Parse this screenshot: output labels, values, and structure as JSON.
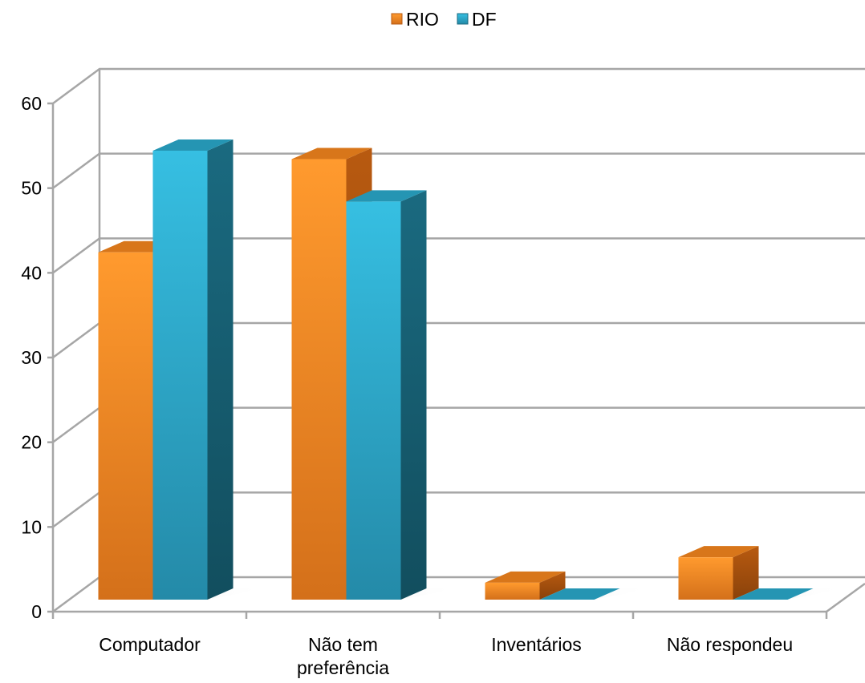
{
  "chart_data": {
    "type": "bar",
    "title": "",
    "xlabel": "",
    "ylabel": "",
    "categories": [
      "Computador",
      "Não tem preferência",
      "Inventários",
      "Não respondeu"
    ],
    "category_lines": [
      [
        "Computador"
      ],
      [
        "Não tem",
        "preferência"
      ],
      [
        "Inventários"
      ],
      [
        "Não respondeu"
      ]
    ],
    "series": [
      {
        "name": "RIO",
        "values": [
          41,
          52,
          2,
          5
        ]
      },
      {
        "name": "DF",
        "values": [
          53,
          47,
          0,
          0
        ]
      }
    ],
    "ylim": [
      0,
      60
    ],
    "yticks": [
      0,
      10,
      20,
      30,
      40,
      50,
      60
    ],
    "grid": true,
    "legend_position": "top",
    "colors": {
      "series": [
        "#f28a1e",
        "#2fb0d3"
      ],
      "series_dark": [
        "#b85a10",
        "#1a6a80"
      ],
      "series_top": [
        "#d8761a",
        "#2595b3"
      ],
      "grid": "#a6a6a6",
      "text": "#000000"
    }
  }
}
